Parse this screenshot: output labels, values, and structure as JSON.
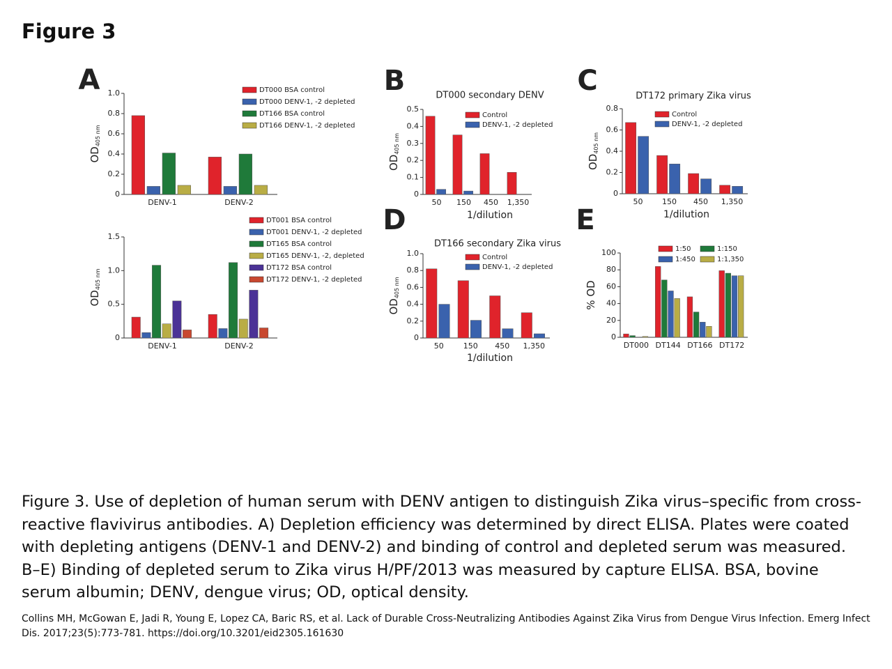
{
  "title": "Figure 3",
  "caption": "Figure 3. Use of depletion of human serum with DENV antigen to distinguish Zika virus–specific from cross-reactive flavivirus antibodies. A) Depletion efficiency was determined by direct ELISA. Plates were coated with depleting antigens (DENV-1 and DENV-2) and binding of control and depleted serum was measured. B–E) Binding of depleted serum to Zika virus H/PF/2013 was measured by capture ELISA. BSA, bovine serum albumin; DENV, dengue virus; OD, optical density.",
  "citation": "Collins MH, McGowan E, Jadi R, Young E, Lopez CA, Baric RS, et al. Lack of Durable Cross-Neutralizing Antibodies Against Zika Virus from Dengue Virus Infection. Emerg Infect Dis. 2017;23(5):773-781. https://doi.org/10.3201/eid2305.161630",
  "chart_data": [
    {
      "type": "bar",
      "panel": "A",
      "ylabel": "OD",
      "ylabel_sub": "405 nm",
      "categories": [
        "DENV-1",
        "DENV-2"
      ],
      "ylim": [
        0,
        1
      ],
      "yticks": [
        0,
        0.2,
        0.4,
        0.6,
        0.8,
        {
          "value": 1,
          "label": "1.0"
        }
      ],
      "series": [
        {
          "name": "DT000 BSA control",
          "color": "#e0232b",
          "values": [
            0.78,
            0.37
          ]
        },
        {
          "name": "DT000 DENV-1, -2 depleted",
          "color": "#3a62ad",
          "values": [
            0.08,
            0.08
          ]
        },
        {
          "name": "DT166 BSA control",
          "color": "#1f7a3a",
          "values": [
            0.41,
            0.4
          ]
        },
        {
          "name": "DT166 DENV-1, -2 depleted",
          "color": "#b9ad45",
          "values": [
            0.09,
            0.09
          ]
        }
      ]
    },
    {
      "type": "bar",
      "ylabel": "OD",
      "ylabel_sub": "405 nm",
      "categories": [
        "DENV-1",
        "DENV-2"
      ],
      "ylim": [
        0,
        1.5
      ],
      "yticks": [
        0,
        0.5,
        {
          "value": 1,
          "label": "1.0"
        },
        1.5
      ],
      "series": [
        {
          "name": "DT001 BSA control",
          "color": "#e0232b",
          "values": [
            0.31,
            0.35
          ]
        },
        {
          "name": "DT001 DENV-1, -2 depleted",
          "color": "#3a62ad",
          "values": [
            0.08,
            0.14
          ]
        },
        {
          "name": "DT165 BSA control",
          "color": "#1f7a3a",
          "values": [
            1.08,
            1.12
          ]
        },
        {
          "name": "DT165 DENV-1, -2, depleted",
          "color": "#b9ad45",
          "values": [
            0.21,
            0.28
          ]
        },
        {
          "name": "DT172 BSA control",
          "color": "#4b3296",
          "values": [
            0.55,
            0.71
          ]
        },
        {
          "name": "DT172 DENV-1, -2 depleted",
          "color": "#c8482f",
          "values": [
            0.12,
            0.15
          ]
        }
      ]
    },
    {
      "type": "bar",
      "panel": "B",
      "title": "DT000 secondary DENV",
      "xlabel": "1/dilution",
      "ylabel": "OD",
      "ylabel_sub": "405 nm",
      "categories": [
        "50",
        "150",
        "450",
        "1,350"
      ],
      "ylim": [
        0,
        0.5
      ],
      "yticks": [
        0,
        0.1,
        0.2,
        0.3,
        0.4,
        0.5
      ],
      "series": [
        {
          "name": "Control",
          "color": "#e0232b",
          "values": [
            0.46,
            0.35,
            0.24,
            0.13
          ]
        },
        {
          "name": "DENV-1, -2 depleted",
          "color": "#3a62ad",
          "values": [
            0.03,
            0.02,
            0,
            0
          ]
        }
      ]
    },
    {
      "type": "bar",
      "panel": "C",
      "title": "DT172 primary Zika virus",
      "xlabel": "1/dilution",
      "ylabel": "OD",
      "ylabel_sub": "405 nm",
      "categories": [
        "50",
        "150",
        "450",
        "1,350"
      ],
      "ylim": [
        0,
        0.8
      ],
      "yticks": [
        0,
        0.2,
        0.4,
        0.6,
        0.8
      ],
      "series": [
        {
          "name": "Control",
          "color": "#e0232b",
          "values": [
            0.67,
            0.36,
            0.19,
            0.08
          ]
        },
        {
          "name": "DENV-1, -2 depleted",
          "color": "#3a62ad",
          "values": [
            0.54,
            0.28,
            0.14,
            0.07
          ]
        }
      ]
    },
    {
      "type": "bar",
      "panel": "D",
      "title": "DT166 secondary Zika virus",
      "xlabel": "1/dilution",
      "ylabel": "OD",
      "ylabel_sub": "405 nm",
      "categories": [
        "50",
        "150",
        "450",
        "1,350"
      ],
      "ylim": [
        0,
        1
      ],
      "yticks": [
        0,
        0.2,
        0.4,
        0.6,
        0.8,
        {
          "value": 1,
          "label": "1.0"
        }
      ],
      "series": [
        {
          "name": "Control",
          "color": "#e0232b",
          "values": [
            0.82,
            0.68,
            0.5,
            0.3
          ]
        },
        {
          "name": "DENV-1, -2 depleted",
          "color": "#3a62ad",
          "values": [
            0.4,
            0.21,
            0.11,
            0.05
          ]
        }
      ]
    },
    {
      "type": "bar",
      "panel": "E",
      "ylabel": "% OD",
      "categories": [
        "DT000",
        "DT144",
        "DT166",
        "DT172"
      ],
      "ylim": [
        0,
        100
      ],
      "yticks": [
        0,
        20,
        40,
        60,
        80,
        100
      ],
      "series": [
        {
          "name": "1:50",
          "color": "#e0232b",
          "values": [
            4,
            84,
            48,
            79
          ]
        },
        {
          "name": "1:150",
          "color": "#1f7a3a",
          "values": [
            2,
            68,
            30,
            76
          ]
        },
        {
          "name": "1:450",
          "color": "#3a62ad",
          "values": [
            0,
            55,
            18,
            73
          ]
        },
        {
          "name": "1:1,350",
          "color": "#b9ad45",
          "values": [
            1,
            46,
            13,
            73
          ]
        }
      ]
    }
  ]
}
